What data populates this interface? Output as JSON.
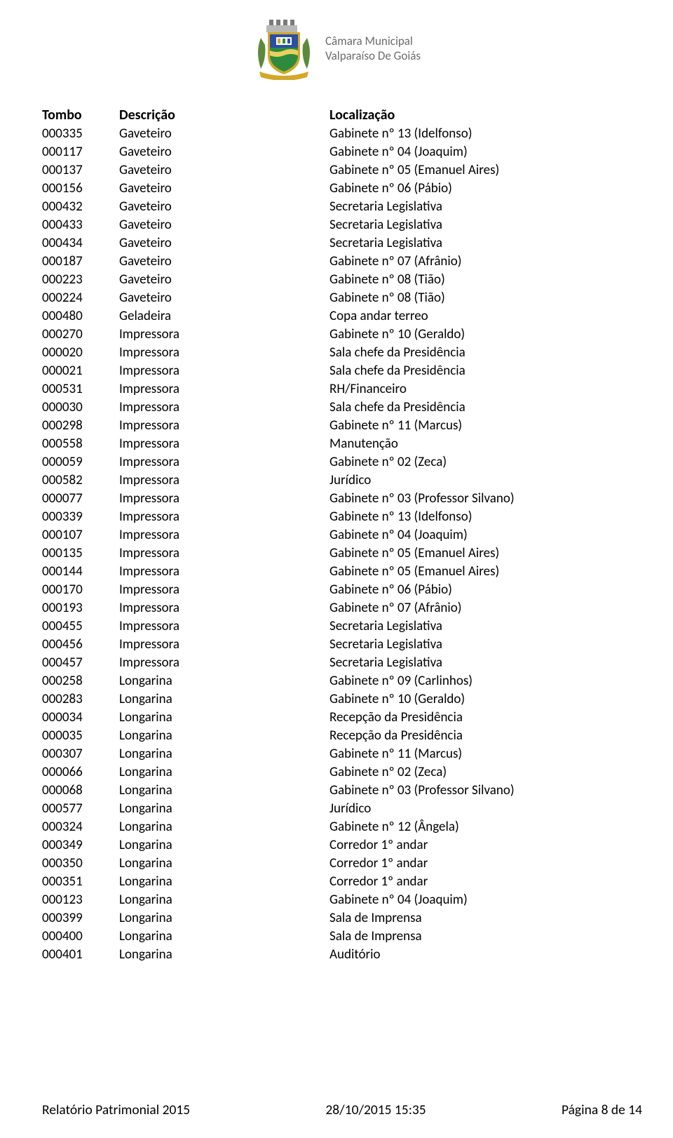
{
  "org": {
    "line1": "Câmara Municipal",
    "line2": "Valparaíso De Goiás"
  },
  "crest_colors": {
    "wall": "#b8b8b8",
    "shield_blue": "#2a4fa2",
    "shield_green": "#2e8b3d",
    "shield_border": "#d2a82a",
    "ribbon": "#d2a82a",
    "leaf": "#5c8a3a",
    "castle": "#7a7a7a"
  },
  "headers": {
    "tombo": "Tombo",
    "desc": "Descrição",
    "local": "Localização"
  },
  "rows": [
    {
      "tombo": "000335",
      "desc": "Gaveteiro",
      "local": "Gabinete nº 13 (Idelfonso)"
    },
    {
      "tombo": "000117",
      "desc": "Gaveteiro",
      "local": "Gabinete nº 04 (Joaquim)"
    },
    {
      "tombo": "000137",
      "desc": "Gaveteiro",
      "local": "Gabinete nº 05 (Emanuel Aires)"
    },
    {
      "tombo": "000156",
      "desc": "Gaveteiro",
      "local": "Gabinete nº 06 (Pábio)"
    },
    {
      "tombo": "000432",
      "desc": "Gaveteiro",
      "local": "Secretaria Legislativa"
    },
    {
      "tombo": "000433",
      "desc": "Gaveteiro",
      "local": "Secretaria Legislativa"
    },
    {
      "tombo": "000434",
      "desc": "Gaveteiro",
      "local": "Secretaria Legislativa"
    },
    {
      "tombo": "000187",
      "desc": "Gaveteiro",
      "local": "Gabinete nº 07 (Afrânio)"
    },
    {
      "tombo": "000223",
      "desc": "Gaveteiro",
      "local": "Gabinete nº 08 (Tião)"
    },
    {
      "tombo": "000224",
      "desc": "Gaveteiro",
      "local": "Gabinete nº 08 (Tião)"
    },
    {
      "tombo": "000480",
      "desc": "Geladeira",
      "local": "Copa andar terreo"
    },
    {
      "tombo": "000270",
      "desc": "Impressora",
      "local": "Gabinete nº 10 (Geraldo)"
    },
    {
      "tombo": "000020",
      "desc": "Impressora",
      "local": "Sala chefe da Presidência"
    },
    {
      "tombo": "000021",
      "desc": "Impressora",
      "local": "Sala chefe da Presidência"
    },
    {
      "tombo": "000531",
      "desc": "Impressora",
      "local": "RH/Financeiro"
    },
    {
      "tombo": "000030",
      "desc": "Impressora",
      "local": "Sala chefe da Presidência"
    },
    {
      "tombo": "000298",
      "desc": "Impressora",
      "local": "Gabinete nº 11 (Marcus)"
    },
    {
      "tombo": "000558",
      "desc": "Impressora",
      "local": "Manutenção"
    },
    {
      "tombo": "000059",
      "desc": "Impressora",
      "local": "Gabinete nº 02 (Zeca)"
    },
    {
      "tombo": "000582",
      "desc": "Impressora",
      "local": "Jurídico"
    },
    {
      "tombo": "000077",
      "desc": "Impressora",
      "local": "Gabinete nº 03 (Professor Silvano)"
    },
    {
      "tombo": "000339",
      "desc": "Impressora",
      "local": "Gabinete nº 13 (Idelfonso)"
    },
    {
      "tombo": "000107",
      "desc": "Impressora",
      "local": "Gabinete nº 04 (Joaquim)"
    },
    {
      "tombo": "000135",
      "desc": "Impressora",
      "local": "Gabinete nº 05 (Emanuel Aires)"
    },
    {
      "tombo": "000144",
      "desc": "Impressora",
      "local": "Gabinete nº 05 (Emanuel Aires)"
    },
    {
      "tombo": "000170",
      "desc": "Impressora",
      "local": "Gabinete nº 06 (Pábio)"
    },
    {
      "tombo": "000193",
      "desc": "Impressora",
      "local": "Gabinete nº 07 (Afrânio)"
    },
    {
      "tombo": "000455",
      "desc": "Impressora",
      "local": "Secretaria Legislativa"
    },
    {
      "tombo": "000456",
      "desc": "Impressora",
      "local": "Secretaria Legislativa"
    },
    {
      "tombo": "000457",
      "desc": "Impressora",
      "local": "Secretaria Legislativa"
    },
    {
      "tombo": "000258",
      "desc": "Longarina",
      "local": "Gabinete nº 09 (Carlinhos)"
    },
    {
      "tombo": "000283",
      "desc": "Longarina",
      "local": "Gabinete nº 10 (Geraldo)"
    },
    {
      "tombo": "000034",
      "desc": "Longarina",
      "local": "Recepção da Presidência"
    },
    {
      "tombo": "000035",
      "desc": "Longarina",
      "local": "Recepção da Presidência"
    },
    {
      "tombo": "000307",
      "desc": "Longarina",
      "local": "Gabinete nº 11 (Marcus)"
    },
    {
      "tombo": "000066",
      "desc": "Longarina",
      "local": "Gabinete nº 02 (Zeca)"
    },
    {
      "tombo": "000068",
      "desc": "Longarina",
      "local": "Gabinete nº 03 (Professor Silvano)"
    },
    {
      "tombo": "000577",
      "desc": "Longarina",
      "local": "Jurídico"
    },
    {
      "tombo": "000324",
      "desc": "Longarina",
      "local": "Gabinete nº 12 (Ângela)"
    },
    {
      "tombo": "000349",
      "desc": "Longarina",
      "local": "Corredor 1º andar"
    },
    {
      "tombo": "000350",
      "desc": "Longarina",
      "local": "Corredor 1º andar"
    },
    {
      "tombo": "000351",
      "desc": "Longarina",
      "local": "Corredor 1º andar"
    },
    {
      "tombo": "000123",
      "desc": "Longarina",
      "local": "Gabinete nº 04 (Joaquim)"
    },
    {
      "tombo": "000399",
      "desc": "Longarina",
      "local": "Sala de Imprensa"
    },
    {
      "tombo": "000400",
      "desc": "Longarina",
      "local": "Sala de Imprensa"
    },
    {
      "tombo": "000401",
      "desc": "Longarina",
      "local": "Auditório"
    }
  ],
  "footer": {
    "left": "Relatório Patrimonial 2015",
    "center": "28/10/2015 15:35",
    "right": "Página 8 de 14"
  },
  "text_color": "#000000",
  "org_text_color": "#6b6b6b",
  "font_size_body": 19,
  "font_size_header": 20,
  "line_height": 26
}
